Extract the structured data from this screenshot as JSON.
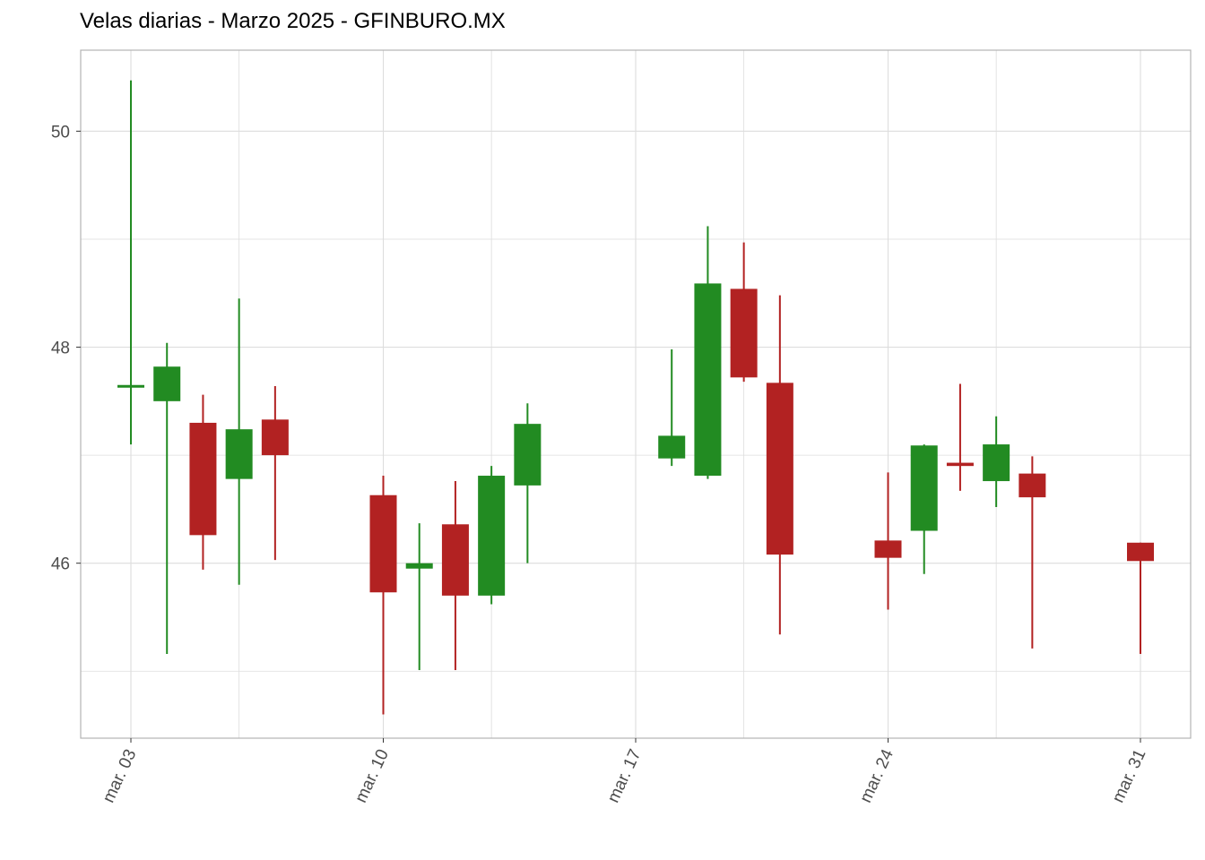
{
  "chart_data": {
    "type": "candlestick",
    "title": "Velas diarias - Marzo 2025 - GFINBURO.MX",
    "xlabel": "",
    "ylabel": "",
    "x_range": [
      "2025-03-02",
      "2025-03-31"
    ],
    "ylim": [
      44.38,
      50.75
    ],
    "y_ticks": [
      46,
      48,
      50
    ],
    "y_tick_labels": [
      "46",
      "48",
      "50"
    ],
    "y_minor_ticks": [
      45,
      47,
      49
    ],
    "x_ticks": [
      "2025-03-03",
      "2025-03-10",
      "2025-03-17",
      "2025-03-24",
      "2025-03-31"
    ],
    "x_tick_labels": [
      "mar. 03",
      "mar. 10",
      "mar. 17",
      "mar. 24",
      "mar. 31"
    ],
    "x_minor_ticks": [
      "2025-03-06",
      "2025-03-13",
      "2025-03-20",
      "2025-03-27"
    ],
    "grid": true,
    "colors": {
      "up": "#228b22",
      "down": "#b22222",
      "grid": "#dddddd",
      "panel_border": "#b3b3b3"
    },
    "candles": [
      {
        "date": "2025-03-03",
        "open": 47.65,
        "high": 50.47,
        "low": 47.1,
        "close": 47.65
      },
      {
        "date": "2025-03-04",
        "open": 47.5,
        "high": 48.04,
        "low": 45.16,
        "close": 47.82
      },
      {
        "date": "2025-03-05",
        "open": 47.3,
        "high": 47.56,
        "low": 45.94,
        "close": 46.26
      },
      {
        "date": "2025-03-06",
        "open": 46.78,
        "high": 48.45,
        "low": 45.8,
        "close": 47.24
      },
      {
        "date": "2025-03-07",
        "open": 47.33,
        "high": 47.64,
        "low": 46.03,
        "close": 47.0
      },
      {
        "date": "2025-03-10",
        "open": 46.63,
        "high": 46.81,
        "low": 44.6,
        "close": 45.73
      },
      {
        "date": "2025-03-11",
        "open": 45.95,
        "high": 46.37,
        "low": 45.01,
        "close": 46.0
      },
      {
        "date": "2025-03-12",
        "open": 46.36,
        "high": 46.76,
        "low": 45.01,
        "close": 45.7
      },
      {
        "date": "2025-03-13",
        "open": 45.7,
        "high": 46.9,
        "low": 45.62,
        "close": 46.81
      },
      {
        "date": "2025-03-14",
        "open": 46.72,
        "high": 47.48,
        "low": 46.0,
        "close": 47.29
      },
      {
        "date": "2025-03-18",
        "open": 46.97,
        "high": 47.98,
        "low": 46.9,
        "close": 47.18
      },
      {
        "date": "2025-03-19",
        "open": 46.81,
        "high": 49.12,
        "low": 46.78,
        "close": 48.59
      },
      {
        "date": "2025-03-20",
        "open": 48.54,
        "high": 48.97,
        "low": 47.68,
        "close": 47.72
      },
      {
        "date": "2025-03-21",
        "open": 47.67,
        "high": 48.48,
        "low": 45.34,
        "close": 46.08
      },
      {
        "date": "2025-03-24",
        "open": 46.21,
        "high": 46.84,
        "low": 45.57,
        "close": 46.05
      },
      {
        "date": "2025-03-25",
        "open": 46.3,
        "high": 47.1,
        "low": 45.9,
        "close": 47.09
      },
      {
        "date": "2025-03-26",
        "open": 46.93,
        "high": 47.66,
        "low": 46.67,
        "close": 46.9
      },
      {
        "date": "2025-03-27",
        "open": 46.76,
        "high": 47.36,
        "low": 46.52,
        "close": 47.1
      },
      {
        "date": "2025-03-28",
        "open": 46.83,
        "high": 46.99,
        "low": 45.21,
        "close": 46.61
      },
      {
        "date": "2025-03-31",
        "open": 46.19,
        "high": 46.19,
        "low": 45.16,
        "close": 46.02
      }
    ]
  }
}
